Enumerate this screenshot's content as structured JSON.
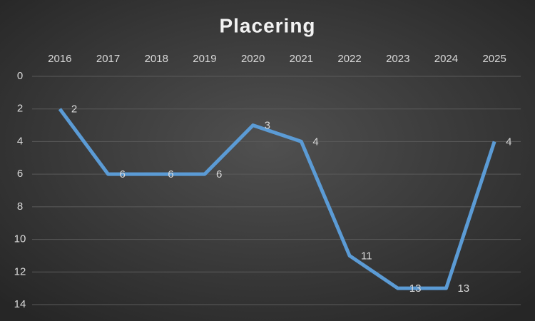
{
  "chart_data": {
    "type": "line",
    "title": "Placering",
    "categories": [
      "2016",
      "2017",
      "2018",
      "2019",
      "2020",
      "2021",
      "2022",
      "2023",
      "2024",
      "2025"
    ],
    "series": [
      {
        "name": "Placering",
        "color": "#5b9bd5",
        "values": [
          2,
          6,
          6,
          6,
          3,
          4,
          11,
          13,
          13,
          4
        ]
      }
    ],
    "ylim": [
      0,
      14
    ],
    "yticks": [
      0,
      2,
      4,
      6,
      8,
      10,
      12,
      14
    ],
    "y_inverted": true,
    "x_axis_position": "top",
    "grid": true,
    "data_labels": true
  }
}
